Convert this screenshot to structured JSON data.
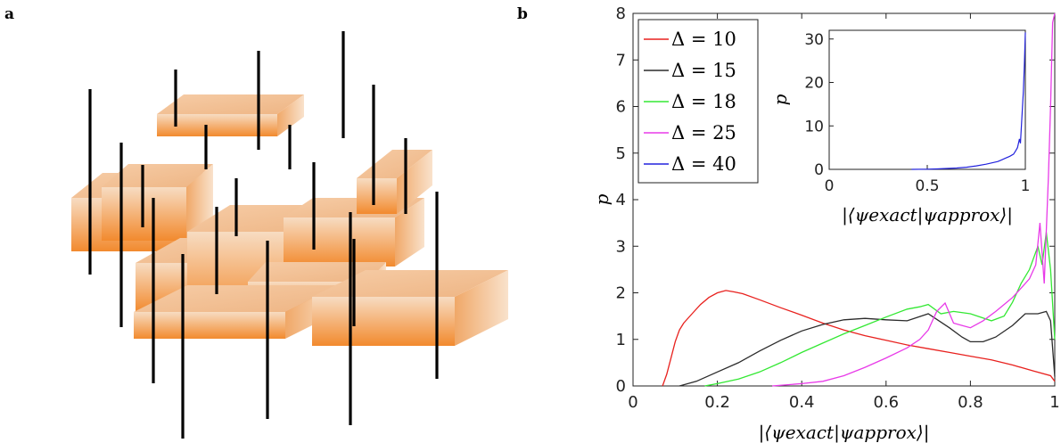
{
  "panels": {
    "a": "a",
    "b": "b"
  },
  "colors": {
    "top": "#f2c9a4",
    "side_light": "#f6d6b8",
    "side_dark": "#f28a2e",
    "pillar": "#000000"
  },
  "chart_data": [
    {
      "type": "line",
      "xlabel": "|⟨ψexact|ψapprox⟩|",
      "ylabel": "p",
      "xlim": [
        0,
        1
      ],
      "ylim": [
        0,
        8
      ],
      "xticks": [
        "0",
        "0.2",
        "0.4",
        "0.6",
        "0.8",
        "1"
      ],
      "yticks": [
        "0",
        "1",
        "2",
        "3",
        "4",
        "5",
        "6",
        "7",
        "8"
      ],
      "legend_position": "top-left",
      "series": [
        {
          "name": "Δ = 10",
          "color": "#e8211e",
          "x": [
            0.07,
            0.08,
            0.09,
            0.1,
            0.11,
            0.12,
            0.14,
            0.16,
            0.18,
            0.2,
            0.22,
            0.24,
            0.26,
            0.3,
            0.35,
            0.4,
            0.45,
            0.5,
            0.55,
            0.6,
            0.65,
            0.7,
            0.75,
            0.8,
            0.85,
            0.9,
            0.95,
            0.99,
            1.0
          ],
          "y": [
            0.0,
            0.25,
            0.6,
            0.95,
            1.2,
            1.35,
            1.55,
            1.75,
            1.9,
            2.0,
            2.05,
            2.02,
            1.98,
            1.85,
            1.68,
            1.52,
            1.35,
            1.2,
            1.08,
            0.98,
            0.88,
            0.8,
            0.72,
            0.64,
            0.56,
            0.45,
            0.32,
            0.22,
            0.1
          ]
        },
        {
          "name": "Δ = 15",
          "color": "#2b2b2b",
          "x": [
            0.11,
            0.15,
            0.2,
            0.25,
            0.3,
            0.35,
            0.4,
            0.45,
            0.5,
            0.55,
            0.6,
            0.65,
            0.7,
            0.75,
            0.78,
            0.8,
            0.83,
            0.86,
            0.9,
            0.93,
            0.96,
            0.98,
            0.99,
            1.0
          ],
          "y": [
            0.0,
            0.1,
            0.3,
            0.5,
            0.75,
            0.98,
            1.18,
            1.32,
            1.42,
            1.45,
            1.42,
            1.4,
            1.55,
            1.25,
            1.05,
            0.95,
            0.95,
            1.05,
            1.3,
            1.55,
            1.55,
            1.6,
            1.4,
            0.2
          ]
        },
        {
          "name": "Δ = 18",
          "color": "#33e833",
          "x": [
            0.17,
            0.2,
            0.25,
            0.3,
            0.35,
            0.4,
            0.45,
            0.5,
            0.55,
            0.6,
            0.65,
            0.68,
            0.7,
            0.73,
            0.76,
            0.8,
            0.85,
            0.88,
            0.9,
            0.92,
            0.94,
            0.96,
            0.97,
            0.98,
            0.99,
            1.0
          ],
          "y": [
            0.0,
            0.05,
            0.15,
            0.3,
            0.5,
            0.72,
            0.92,
            1.12,
            1.3,
            1.48,
            1.65,
            1.7,
            1.75,
            1.55,
            1.6,
            1.55,
            1.4,
            1.5,
            1.8,
            2.2,
            2.5,
            3.0,
            2.6,
            3.3,
            2.5,
            1.0
          ]
        },
        {
          "name": "Δ = 25",
          "color": "#e83ae8",
          "x": [
            0.33,
            0.4,
            0.45,
            0.5,
            0.55,
            0.6,
            0.65,
            0.68,
            0.7,
            0.72,
            0.74,
            0.76,
            0.78,
            0.8,
            0.83,
            0.86,
            0.88,
            0.9,
            0.92,
            0.94,
            0.955,
            0.965,
            0.975,
            0.985,
            0.99,
            0.995,
            1.0
          ],
          "y": [
            0.0,
            0.05,
            0.1,
            0.22,
            0.4,
            0.6,
            0.82,
            1.0,
            1.2,
            1.6,
            1.78,
            1.35,
            1.3,
            1.25,
            1.4,
            1.6,
            1.75,
            1.9,
            2.1,
            2.3,
            2.6,
            3.5,
            2.2,
            4.5,
            6.0,
            7.8,
            8.0
          ]
        }
      ]
    },
    {
      "type": "line",
      "xlabel": "|⟨ψexact|ψapprox⟩|",
      "ylabel": "p",
      "xlim": [
        0,
        1
      ],
      "ylim": [
        0,
        32
      ],
      "xticks": [
        "0",
        "0.5",
        "1"
      ],
      "yticks": [
        "0",
        "10",
        "20",
        "30"
      ],
      "series": [
        {
          "name": "Δ = 40",
          "color": "#2222dd",
          "x": [
            0.42,
            0.5,
            0.55,
            0.6,
            0.65,
            0.7,
            0.75,
            0.8,
            0.83,
            0.86,
            0.88,
            0.9,
            0.92,
            0.94,
            0.95,
            0.96,
            0.97,
            0.975,
            0.98,
            0.985,
            0.99,
            0.995,
            1.0
          ],
          "y": [
            0.0,
            0.05,
            0.1,
            0.2,
            0.3,
            0.5,
            0.8,
            1.2,
            1.5,
            1.8,
            2.2,
            2.6,
            3.0,
            3.5,
            4.2,
            5.0,
            7.0,
            6.0,
            10.0,
            14.0,
            18.0,
            24.0,
            31.5
          ]
        }
      ]
    }
  ]
}
